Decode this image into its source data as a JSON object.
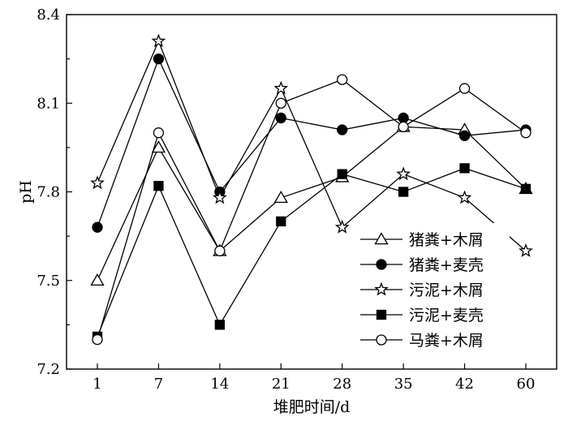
{
  "chart_data": {
    "type": "line",
    "title": "",
    "xlabel": "堆肥时间/d",
    "ylabel": "pH",
    "categories": [
      "1",
      "7",
      "14",
      "21",
      "28",
      "35",
      "42",
      "60"
    ],
    "ylim": [
      7.2,
      8.4
    ],
    "yticks": [
      "7.2",
      "7.5",
      "7.8",
      "8.1",
      "8.4"
    ],
    "grid": false,
    "legend_position": "lower-right",
    "series": [
      {
        "name": "猪粪+木屑",
        "marker": "triangle-open",
        "values": [
          7.5,
          7.95,
          7.6,
          7.78,
          7.85,
          8.02,
          8.01,
          7.81
        ]
      },
      {
        "name": "猪粪+麦壳",
        "marker": "circle-filled",
        "values": [
          7.68,
          8.25,
          7.8,
          8.05,
          8.01,
          8.05,
          7.99,
          8.01
        ]
      },
      {
        "name": "污泥+木屑",
        "marker": "star-open",
        "values": [
          7.83,
          8.31,
          7.78,
          8.15,
          7.68,
          7.86,
          7.78,
          7.6
        ]
      },
      {
        "name": "污泥+麦壳",
        "marker": "square-filled",
        "values": [
          7.31,
          7.82,
          7.35,
          7.7,
          7.86,
          7.8,
          7.88,
          7.81
        ]
      },
      {
        "name": "马粪+木屑",
        "marker": "circle-open",
        "values": [
          7.3,
          8.0,
          7.6,
          8.1,
          8.18,
          8.02,
          8.15,
          8.0
        ]
      }
    ]
  }
}
